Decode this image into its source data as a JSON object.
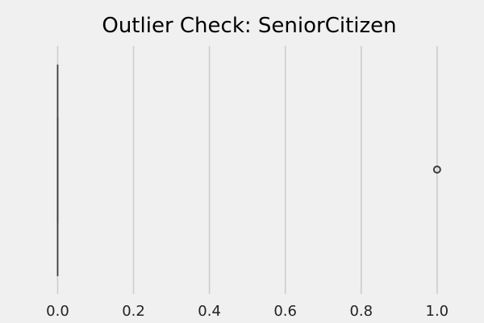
{
  "chart_data": {
    "type": "boxplot",
    "title": "Outlier Check: SeniorCitizen",
    "xlabel": "",
    "ylabel": "",
    "xlim": [
      -0.035,
      1.045
    ],
    "xticks": [
      0.0,
      0.2,
      0.4,
      0.6,
      0.8,
      1.0
    ],
    "x_tick_labels": [
      "0.0",
      "0.2",
      "0.4",
      "0.6",
      "0.8",
      "1.0"
    ],
    "grid": "vertical",
    "orientation": "horizontal",
    "box": {
      "min": 0.0,
      "q1": 0.0,
      "median": 0.0,
      "q3": 0.0,
      "max": 0.0
    },
    "outliers": [
      1.0
    ],
    "colors": {
      "background": "#f0f0f0",
      "grid": "#cbcbcb",
      "box_line": "#3c3c3c",
      "outlier_edge": "#3c3c3c"
    }
  }
}
